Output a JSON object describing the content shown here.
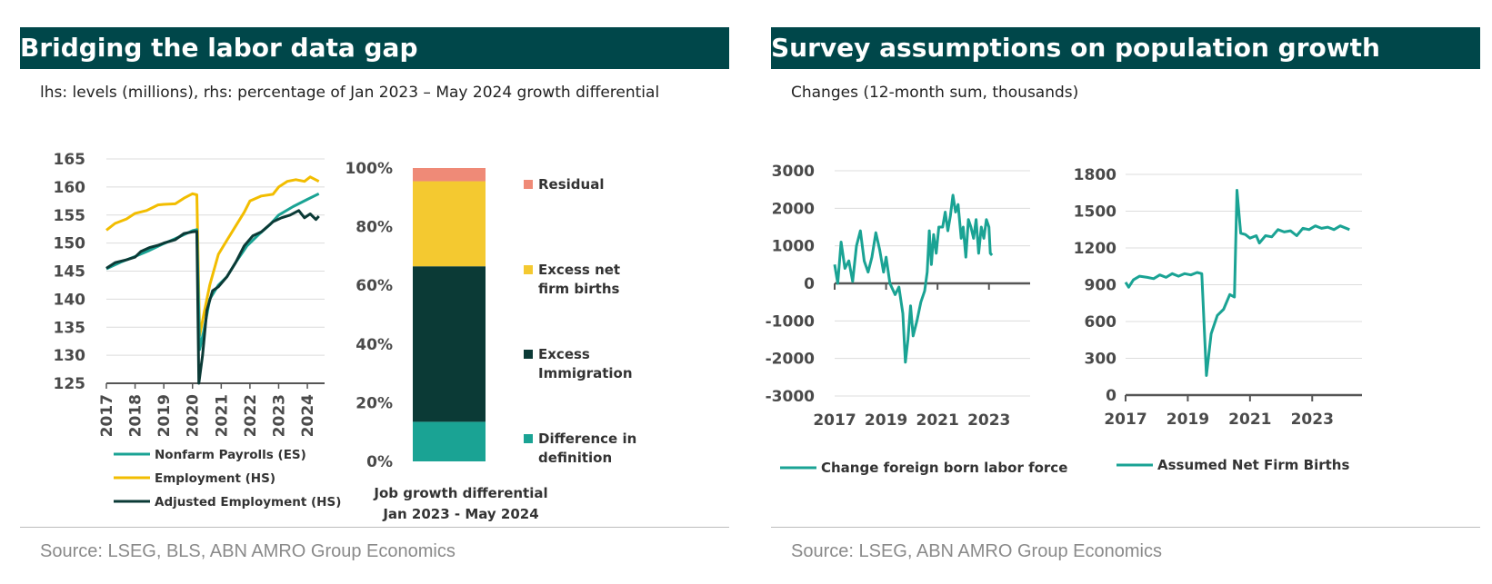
{
  "left_panel": {
    "title": "Bridging the labor data gap",
    "subtitle": "lhs: levels (millions), rhs: percentage of Jan 2023 – May 2024 growth differential",
    "source": "Source:  LSEG, BLS, ABN AMRO Group Economics"
  },
  "right_panel": {
    "title": "Survey assumptions on population growth",
    "subtitle": "Changes (12-month sum, thousands)",
    "source": "Source: LSEG, ABN AMRO Group Economics"
  },
  "chart_data": [
    {
      "type": "line",
      "ylim": [
        125,
        165
      ],
      "yticks": [
        125,
        130,
        135,
        140,
        145,
        150,
        155,
        160,
        165
      ],
      "xlim": [
        2017,
        2024.6
      ],
      "xticks": [
        "2017",
        "2018",
        "2019",
        "2020",
        "2021",
        "2022",
        "2023",
        "2024"
      ],
      "colors": {
        "Nonfarm Payrolls (ES)": "#1aa394",
        "Employment (HS)": "#f2bd00",
        "Adjusted Employment (HS)": "#0b3a36"
      },
      "series": [
        {
          "name": "Nonfarm Payrolls (ES)",
          "points": [
            [
              2017.0,
              145.4
            ],
            [
              2017.5,
              146.6
            ],
            [
              2018.0,
              147.6
            ],
            [
              2018.5,
              148.7
            ],
            [
              2019.0,
              149.9
            ],
            [
              2019.5,
              151.0
            ],
            [
              2020.0,
              152.2
            ],
            [
              2020.15,
              152.4
            ],
            [
              2020.25,
              131.0
            ],
            [
              2020.4,
              134.5
            ],
            [
              2020.6,
              140.0
            ],
            [
              2020.9,
              142.5
            ],
            [
              2021.2,
              144.0
            ],
            [
              2021.5,
              146.5
            ],
            [
              2021.9,
              149.5
            ],
            [
              2022.3,
              151.5
            ],
            [
              2022.7,
              153.3
            ],
            [
              2023.0,
              155.0
            ],
            [
              2023.5,
              156.5
            ],
            [
              2024.0,
              157.8
            ],
            [
              2024.4,
              158.8
            ]
          ]
        },
        {
          "name": "Employment (HS)",
          "points": [
            [
              2017.0,
              152.3
            ],
            [
              2017.3,
              153.5
            ],
            [
              2017.7,
              154.3
            ],
            [
              2018.0,
              155.3
            ],
            [
              2018.4,
              155.8
            ],
            [
              2018.8,
              156.8
            ],
            [
              2019.0,
              156.9
            ],
            [
              2019.4,
              157.0
            ],
            [
              2019.7,
              158.0
            ],
            [
              2020.0,
              158.8
            ],
            [
              2020.15,
              158.6
            ],
            [
              2020.25,
              133.5
            ],
            [
              2020.4,
              137.5
            ],
            [
              2020.6,
              142.5
            ],
            [
              2020.9,
              148.0
            ],
            [
              2021.2,
              150.5
            ],
            [
              2021.5,
              153.0
            ],
            [
              2021.8,
              155.5
            ],
            [
              2022.0,
              157.5
            ],
            [
              2022.4,
              158.4
            ],
            [
              2022.8,
              158.7
            ],
            [
              2023.0,
              160.0
            ],
            [
              2023.3,
              161.0
            ],
            [
              2023.6,
              161.3
            ],
            [
              2023.9,
              161.0
            ],
            [
              2024.1,
              161.8
            ],
            [
              2024.4,
              161.0
            ]
          ]
        },
        {
          "name": "Adjusted Employment (HS)",
          "points": [
            [
              2017.0,
              145.5
            ],
            [
              2017.3,
              146.5
            ],
            [
              2017.7,
              147.0
            ],
            [
              2018.0,
              147.5
            ],
            [
              2018.2,
              148.5
            ],
            [
              2018.5,
              149.2
            ],
            [
              2018.8,
              149.6
            ],
            [
              2019.0,
              150.0
            ],
            [
              2019.4,
              150.6
            ],
            [
              2019.7,
              151.7
            ],
            [
              2020.0,
              152.0
            ],
            [
              2020.15,
              152.1
            ],
            [
              2020.22,
              125.0
            ],
            [
              2020.35,
              130.0
            ],
            [
              2020.5,
              138.0
            ],
            [
              2020.7,
              141.5
            ],
            [
              2020.9,
              142.2
            ],
            [
              2021.2,
              144.0
            ],
            [
              2021.5,
              146.5
            ],
            [
              2021.8,
              149.5
            ],
            [
              2022.1,
              151.3
            ],
            [
              2022.4,
              152.0
            ],
            [
              2022.8,
              153.8
            ],
            [
              2023.1,
              154.5
            ],
            [
              2023.4,
              155.0
            ],
            [
              2023.7,
              155.8
            ],
            [
              2023.9,
              154.5
            ],
            [
              2024.1,
              155.2
            ],
            [
              2024.3,
              154.2
            ],
            [
              2024.4,
              154.8
            ]
          ]
        }
      ]
    },
    {
      "type": "bar",
      "stacked": true,
      "categories": [
        "Job growth differential Jan 2023 - May 2024"
      ],
      "xlabel_lines": [
        "Job growth differential",
        "Jan 2023 - May 2024"
      ],
      "ylim": [
        0,
        100
      ],
      "yticks": [
        "0%",
        "20%",
        "40%",
        "60%",
        "80%",
        "100%"
      ],
      "series": [
        {
          "name": "Difference in definition",
          "label_lines": [
            "Difference in",
            "definition"
          ],
          "value": 13.5,
          "color": "#1aa394"
        },
        {
          "name": "Excess Immigration",
          "label_lines": [
            "Excess",
            "Immigration"
          ],
          "value": 53,
          "color": "#0b3a36"
        },
        {
          "name": "Excess net firm births",
          "label_lines": [
            "Excess net",
            "firm births"
          ],
          "value": 29,
          "color": "#f4c930"
        },
        {
          "name": "Residual",
          "label_lines": [
            "Residual"
          ],
          "value": 4.5,
          "color": "#ef8a77"
        }
      ]
    },
    {
      "type": "line",
      "ylim": [
        -3000,
        3000
      ],
      "yticks": [
        "-3000",
        "-2000",
        "-1000",
        "0",
        "1000",
        "2000",
        "3000"
      ],
      "xlim": [
        2017,
        2024.6
      ],
      "xticks": [
        "2017",
        "2019",
        "2021",
        "2023"
      ],
      "color": "#1aa394",
      "series": [
        {
          "name": "Change foreign born labor force",
          "points": [
            [
              2017.0,
              500
            ],
            [
              2017.12,
              0
            ],
            [
              2017.25,
              1100
            ],
            [
              2017.4,
              400
            ],
            [
              2017.55,
              600
            ],
            [
              2017.7,
              50
            ],
            [
              2017.85,
              1000
            ],
            [
              2018.0,
              1400
            ],
            [
              2018.15,
              600
            ],
            [
              2018.3,
              300
            ],
            [
              2018.45,
              700
            ],
            [
              2018.6,
              1350
            ],
            [
              2018.75,
              900
            ],
            [
              2018.9,
              300
            ],
            [
              2019.0,
              700
            ],
            [
              2019.15,
              0
            ],
            [
              2019.35,
              -300
            ],
            [
              2019.5,
              -100
            ],
            [
              2019.65,
              -800
            ],
            [
              2019.75,
              -2100
            ],
            [
              2019.85,
              -1500
            ],
            [
              2019.95,
              -600
            ],
            [
              2020.05,
              -1400
            ],
            [
              2020.2,
              -1000
            ],
            [
              2020.35,
              -500
            ],
            [
              2020.5,
              -200
            ],
            [
              2020.6,
              300
            ],
            [
              2020.68,
              1400
            ],
            [
              2020.76,
              500
            ],
            [
              2020.85,
              1300
            ],
            [
              2020.95,
              800
            ],
            [
              2021.05,
              1500
            ],
            [
              2021.2,
              1500
            ],
            [
              2021.3,
              1900
            ],
            [
              2021.4,
              1400
            ],
            [
              2021.5,
              1800
            ],
            [
              2021.6,
              2350
            ],
            [
              2021.7,
              1900
            ],
            [
              2021.8,
              2100
            ],
            [
              2021.92,
              1200
            ],
            [
              2022.0,
              1500
            ],
            [
              2022.1,
              700
            ],
            [
              2022.2,
              1700
            ],
            [
              2022.3,
              1500
            ],
            [
              2022.4,
              1200
            ],
            [
              2022.5,
              1700
            ],
            [
              2022.6,
              800
            ],
            [
              2022.7,
              1500
            ],
            [
              2022.8,
              1200
            ],
            [
              2022.9,
              1700
            ],
            [
              2023.0,
              1500
            ],
            [
              2023.05,
              800
            ],
            [
              2023.12,
              750
            ]
          ]
        }
      ]
    },
    {
      "type": "line",
      "ylim": [
        0,
        1800
      ],
      "yticks": [
        "0",
        "300",
        "600",
        "900",
        "1200",
        "1500",
        "1800"
      ],
      "xlim": [
        2017,
        2024.6
      ],
      "xticks": [
        "2017",
        "2019",
        "2021",
        "2023"
      ],
      "color": "#1aa394",
      "series": [
        {
          "name": "Assumed Net Firm Births",
          "points": [
            [
              2017.0,
              920
            ],
            [
              2017.1,
              880
            ],
            [
              2017.25,
              940
            ],
            [
              2017.45,
              970
            ],
            [
              2017.7,
              960
            ],
            [
              2017.9,
              950
            ],
            [
              2018.1,
              980
            ],
            [
              2018.3,
              960
            ],
            [
              2018.5,
              990
            ],
            [
              2018.7,
              970
            ],
            [
              2018.9,
              990
            ],
            [
              2019.1,
              980
            ],
            [
              2019.3,
              1000
            ],
            [
              2019.45,
              990
            ],
            [
              2019.6,
              160
            ],
            [
              2019.75,
              500
            ],
            [
              2019.95,
              650
            ],
            [
              2020.15,
              700
            ],
            [
              2020.35,
              820
            ],
            [
              2020.5,
              800
            ],
            [
              2020.58,
              1670
            ],
            [
              2020.7,
              1320
            ],
            [
              2020.85,
              1310
            ],
            [
              2021.0,
              1280
            ],
            [
              2021.2,
              1300
            ],
            [
              2021.3,
              1240
            ],
            [
              2021.5,
              1300
            ],
            [
              2021.7,
              1290
            ],
            [
              2021.9,
              1350
            ],
            [
              2022.1,
              1330
            ],
            [
              2022.3,
              1340
            ],
            [
              2022.5,
              1300
            ],
            [
              2022.7,
              1360
            ],
            [
              2022.9,
              1350
            ],
            [
              2023.1,
              1380
            ],
            [
              2023.3,
              1360
            ],
            [
              2023.5,
              1370
            ],
            [
              2023.7,
              1350
            ],
            [
              2023.9,
              1380
            ],
            [
              2024.2,
              1350
            ]
          ]
        }
      ]
    }
  ]
}
